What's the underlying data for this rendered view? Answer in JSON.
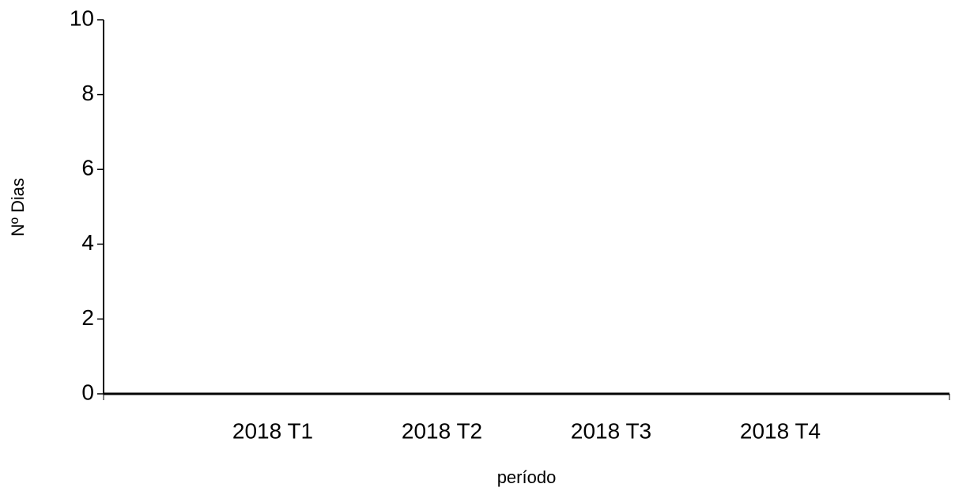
{
  "chart_data": {
    "type": "line",
    "x_label": "período",
    "y_label": "Nº Dias",
    "categories": [
      "2018 T1",
      "2018 T2",
      "2018 T3",
      "2018 T4"
    ],
    "values": [
      null,
      null,
      null,
      null
    ],
    "color": "#000000",
    "ylim": [
      0,
      10
    ],
    "yticks": [
      0,
      2,
      4,
      6,
      8,
      10
    ],
    "grid": false
  }
}
